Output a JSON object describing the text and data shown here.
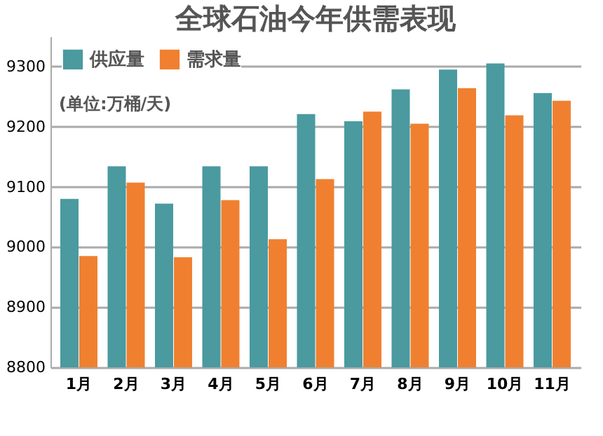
{
  "chart_data": {
    "type": "bar",
    "title": "全球石油今年供需表现",
    "annotations": [
      "(单位:万桶/天)"
    ],
    "categories": [
      "1月",
      "2月",
      "3月",
      "4月",
      "5月",
      "6月",
      "7月",
      "8月",
      "9月",
      "10月",
      "11月"
    ],
    "series": [
      {
        "name": "供应量",
        "color": "#4a9aa0",
        "values": [
          9080,
          9134,
          9072,
          9134,
          9134,
          9221,
          9209,
          9262,
          9295,
          9305,
          9256
        ]
      },
      {
        "name": "需求量",
        "color": "#f08030",
        "values": [
          8985,
          9107,
          8983,
          9078,
          9013,
          9113,
          9225,
          9205,
          9264,
          9219,
          9243
        ]
      }
    ],
    "ylim": [
      8800,
      9350
    ],
    "yticks": [
      8800,
      8900,
      9000,
      9100,
      9200,
      9300
    ],
    "grid": "y",
    "legend": "top left"
  }
}
